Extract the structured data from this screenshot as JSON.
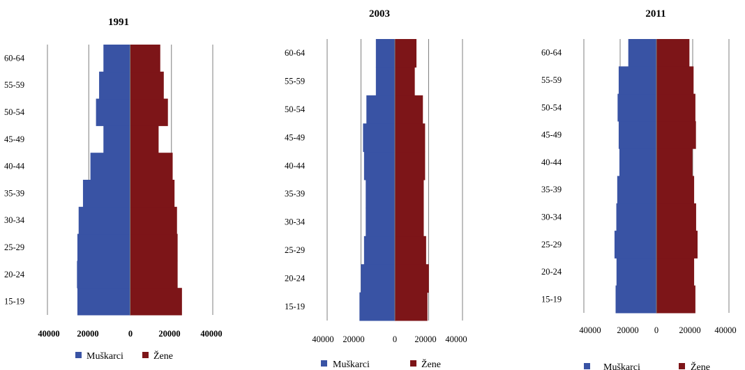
{
  "colors": {
    "male": "#3953A4",
    "female": "#7D1518",
    "grid": "#7f7f7f",
    "axis": "#7f7f7f"
  },
  "chart_data": [
    {
      "type": "bar",
      "title": "1991",
      "categories": [
        "15-19",
        "20-24",
        "25-29",
        "30-34",
        "35-39",
        "40-44",
        "45-49",
        "50-54",
        "55-59",
        "60-64"
      ],
      "xlim": [
        -40000,
        40000
      ],
      "xticks": [
        40000,
        20000,
        0,
        20000,
        40000
      ],
      "grid": true,
      "legend_position": "bottom",
      "series": [
        {
          "name": "Muškarci",
          "values": [
            -25500,
            -25700,
            -25500,
            -24900,
            -22800,
            -19200,
            -12900,
            -16500,
            -15000,
            -12900
          ]
        },
        {
          "name": "Žene",
          "values": [
            25100,
            23000,
            23000,
            22700,
            21500,
            20600,
            13800,
            18300,
            16300,
            14600
          ]
        }
      ]
    },
    {
      "type": "bar",
      "title": "2003",
      "categories": [
        "15-19",
        "20-24",
        "25-29",
        "30-34",
        "35-39",
        "40-44",
        "45-49",
        "50-54",
        "55-59",
        "60-64"
      ],
      "xlim": [
        -40000,
        40000
      ],
      "xticks": [
        "40000",
        "20000",
        "0",
        "20000",
        "40000"
      ],
      "xticks_joined": true,
      "grid": true,
      "legend_position": "bottom",
      "series": [
        {
          "name": "Muškarci",
          "values": [
            -20900,
            -20100,
            -18200,
            -17200,
            -17200,
            -18200,
            -18800,
            -16800,
            -11200,
            -11200
          ]
        },
        {
          "name": "Žene",
          "values": [
            19300,
            20100,
            18500,
            17100,
            17100,
            17900,
            17900,
            16600,
            11800,
            12800
          ]
        }
      ]
    },
    {
      "type": "bar",
      "title": "2011",
      "categories": [
        "15-19",
        "20-24",
        "25-29",
        "30-34",
        "35-39",
        "40-44",
        "45-49",
        "50-54",
        "55-59",
        "60-64"
      ],
      "xlim": [
        -40000,
        40000
      ],
      "xticks": [
        "40000",
        "20000",
        "0",
        "20000",
        "40000"
      ],
      "grid": true,
      "legend_position": "bottom",
      "series": [
        {
          "name": "Muškarci",
          "values": [
            -22500,
            -22000,
            -23100,
            -22100,
            -21600,
            -20400,
            -20800,
            -21400,
            -20800,
            -15500
          ]
        },
        {
          "name": "Žene",
          "values": [
            21500,
            20800,
            22700,
            21900,
            20800,
            19900,
            21800,
            21500,
            20500,
            18200
          ]
        }
      ]
    }
  ]
}
